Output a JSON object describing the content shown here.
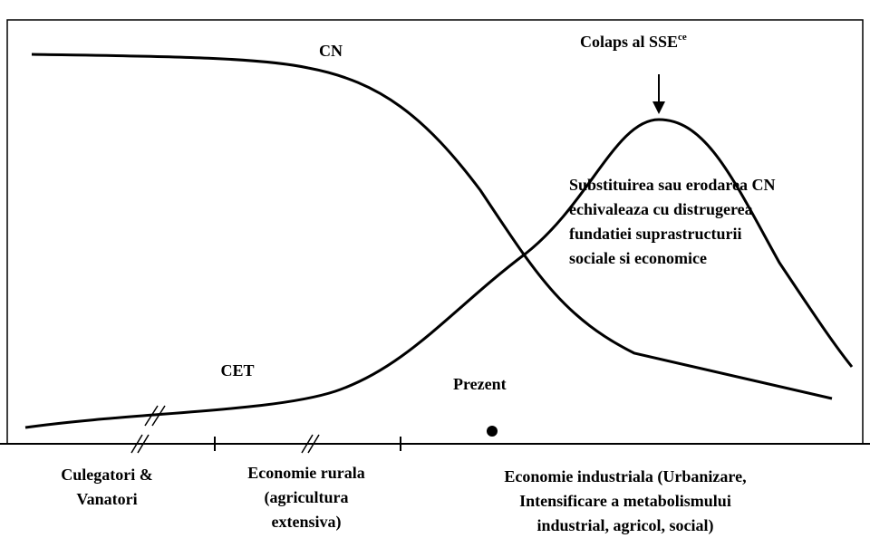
{
  "curves": {
    "cn_label": "CN",
    "cet_label": "CET"
  },
  "collapse": {
    "label": "Colaps al SSE",
    "superscript": "ce"
  },
  "note": {
    "lines": [
      "Substituirea sau erodarea CN",
      "echivaleaza cu distrugerea",
      "fundatiei suprastructurii",
      "sociale si economice"
    ]
  },
  "present": "Prezent",
  "eras": [
    {
      "lines": [
        "Culegatori &",
        "Vanatori"
      ]
    },
    {
      "lines": [
        "Economie rurala",
        "(agricultura",
        "extensiva)"
      ]
    },
    {
      "lines": [
        "Economie industriala (Urbanizare,",
        "Intensificare a metabolismului",
        "industrial, agricol, social)"
      ]
    }
  ]
}
